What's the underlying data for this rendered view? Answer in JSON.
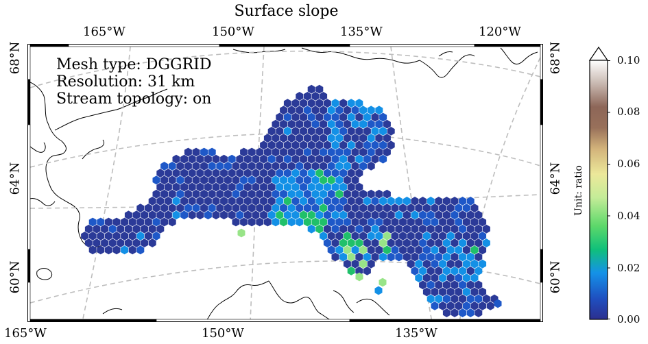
{
  "title": "Surface slope",
  "info_lines": [
    "Mesh type: DGGRID",
    "Resolution: 31 km",
    "Stream topology: on"
  ],
  "top_longitude_labels": [
    "165°W",
    "150°W",
    "135°W",
    "120°W"
  ],
  "bottom_longitude_labels": [
    "165°W",
    "150°W",
    "135°W"
  ],
  "left_latitude_labels": [
    "68°N",
    "64°N",
    "60°N"
  ],
  "right_latitude_labels": [
    "68°N",
    "64°N",
    "60°N"
  ],
  "colorbar": {
    "unit_label": "Unit: ratio",
    "ticks": [
      "0.10",
      "0.08",
      "0.06",
      "0.04",
      "0.02",
      "0.00"
    ],
    "range": [
      0,
      0.1
    ],
    "extend": "max",
    "colormap": "gist_earth-like (navy → blue → cyan → green → yellow → brown → white)"
  },
  "colors": {
    "dominant_cell": "#2b3a98",
    "low_slope": "#1e58c8",
    "mid_slope": "#1390e6",
    "higher_slope": "#20c06a",
    "highest_slope": "#98e488",
    "graticule": "#bdbdbd",
    "coastline": "#000000"
  },
  "frame": "black-and-white alternating border",
  "graticule": "dashed"
}
